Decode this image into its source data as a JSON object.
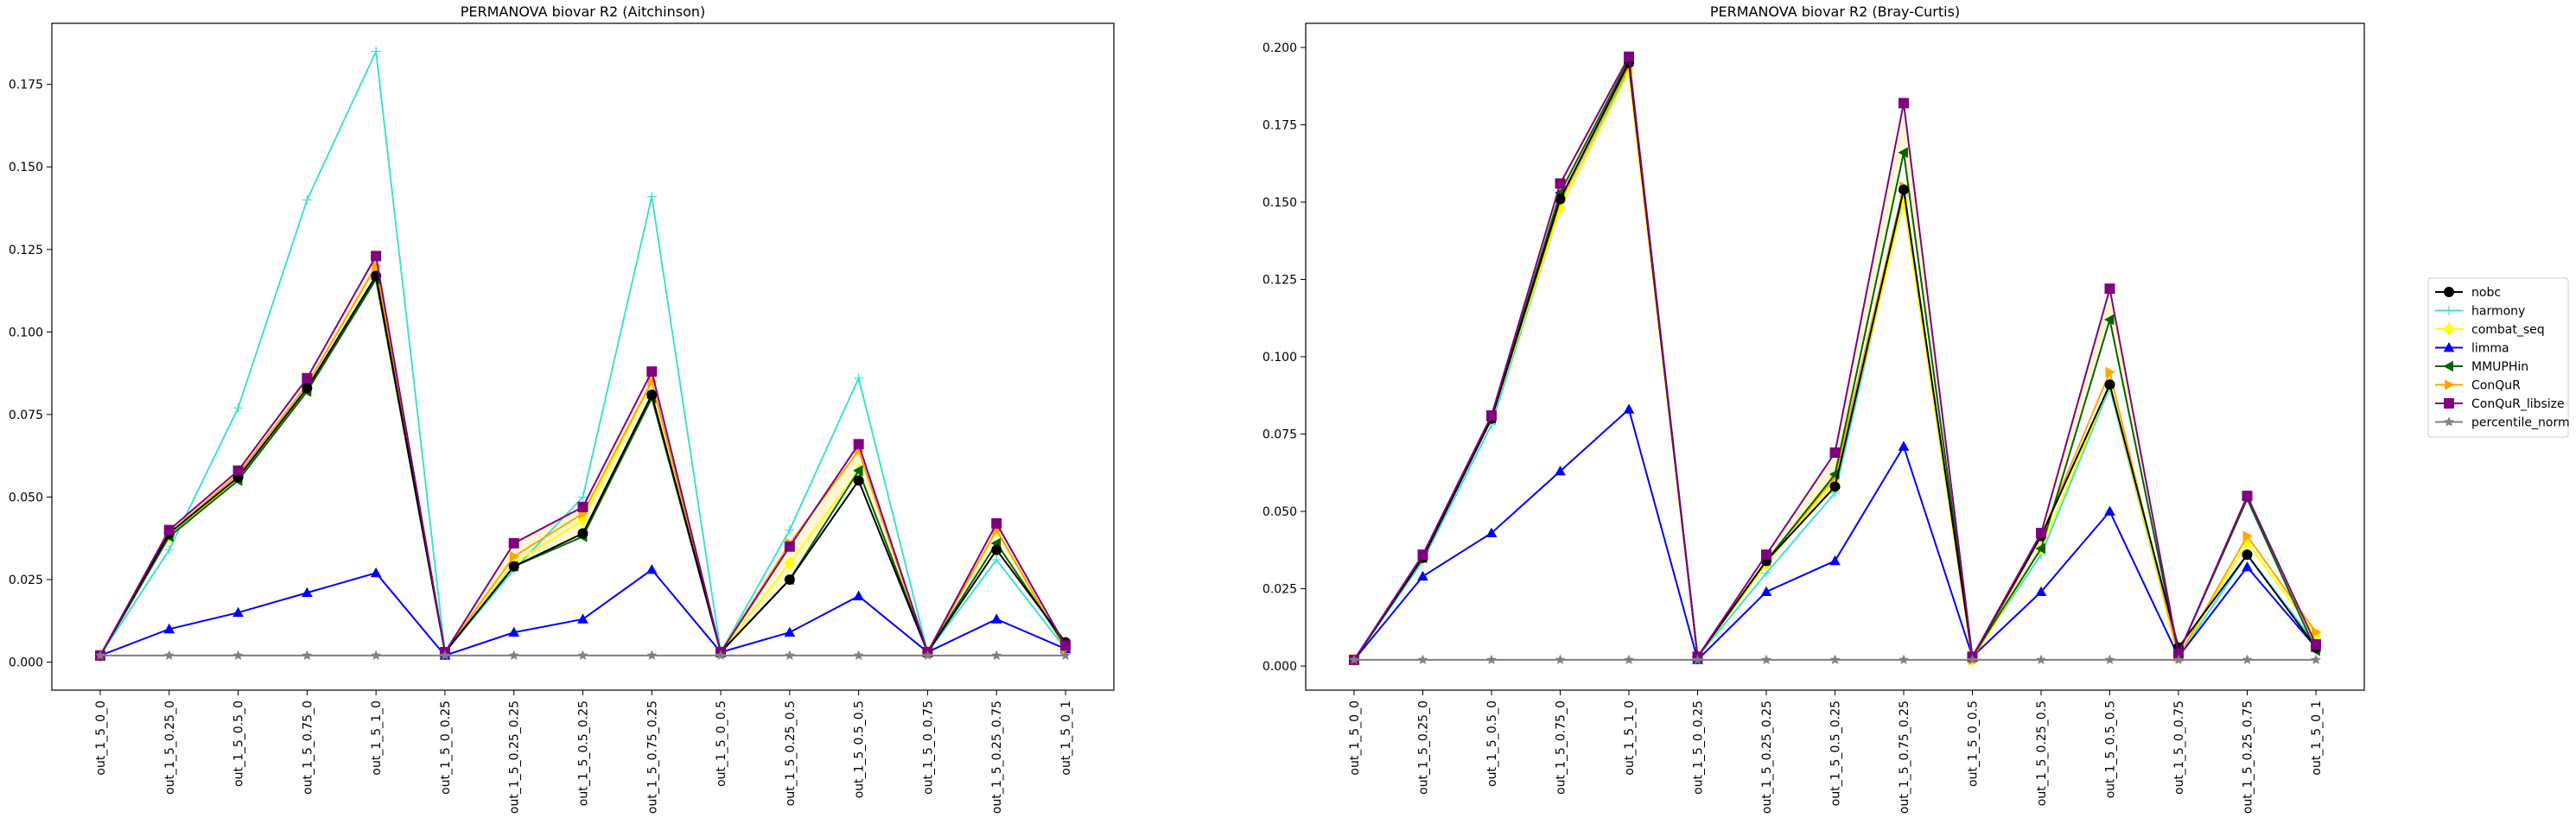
{
  "colors": {
    "nobc": "#000000",
    "harmony": "#40e0d0",
    "combat_seq": "#ffff00",
    "limma": "#0000ff",
    "MMUPHin": "#006400",
    "ConQuR": "#ffa500",
    "ConQuR_libsize": "#800080",
    "percentile_norm": "#808080",
    "fill_band": "#fff2b3"
  },
  "legend": {
    "placement": "right, outside",
    "entries": [
      {
        "key": "nobc",
        "label": "nobc",
        "marker": "circle"
      },
      {
        "key": "harmony",
        "label": "harmony",
        "marker": "thin-plus"
      },
      {
        "key": "combat_seq",
        "label": "combat_seq",
        "marker": "diamond"
      },
      {
        "key": "limma",
        "label": "limma",
        "marker": "triangle-up"
      },
      {
        "key": "MMUPHin",
        "label": "MMUPHin",
        "marker": "triangle-left"
      },
      {
        "key": "ConQuR",
        "label": "ConQuR",
        "marker": "triangle-right"
      },
      {
        "key": "ConQuR_libsize",
        "label": "ConQuR_libsize",
        "marker": "square"
      },
      {
        "key": "percentile_norm",
        "label": "percentile_norm",
        "marker": "star"
      }
    ]
  },
  "chart_data": [
    {
      "type": "line",
      "title": "PERMANOVA biovar R2 (Aitchinson)",
      "xlabel": "",
      "ylabel": "",
      "grid": false,
      "ylim": [
        -0.0085,
        0.1935
      ],
      "yticks": [
        0.0,
        0.025,
        0.05,
        0.075,
        0.1,
        0.125,
        0.15,
        0.175
      ],
      "ytick_labels": [
        "0.000",
        "0.025",
        "0.050",
        "0.075",
        "0.100",
        "0.125",
        "0.150",
        "0.175"
      ],
      "categories": [
        "out_1_5_0_0",
        "out_1_5_0.25_0",
        "out_1_5_0.5_0",
        "out_1_5_0.75_0",
        "out_1_5_1_0",
        "out_1_5_0_0.25",
        "out_1_5_0.25_0.25",
        "out_1_5_0.5_0.25",
        "out_1_5_0.75_0.25",
        "out_1_5_0_0.5",
        "out_1_5_0.25_0.5",
        "out_1_5_0.5_0.5",
        "out_1_5_0_0.75",
        "out_1_5_0.25_0.75",
        "out_1_5_0_1"
      ],
      "series": [
        {
          "name": "harmony",
          "values": [
            0.002,
            0.034,
            0.077,
            0.14,
            0.185,
            0.003,
            0.028,
            0.05,
            0.141,
            0.003,
            0.04,
            0.086,
            0.003,
            0.031,
            0.004
          ]
        },
        {
          "name": "combat_seq",
          "values": [
            0.002,
            0.038,
            0.056,
            0.083,
            0.117,
            0.003,
            0.03,
            0.043,
            0.085,
            0.003,
            0.03,
            0.058,
            0.003,
            0.04,
            0.004
          ]
        },
        {
          "name": "limma",
          "values": [
            0.002,
            0.01,
            0.015,
            0.021,
            0.027,
            0.002,
            0.009,
            0.013,
            0.028,
            0.003,
            0.009,
            0.02,
            0.003,
            0.013,
            0.004
          ]
        },
        {
          "name": "ConQuR",
          "values": [
            0.002,
            0.039,
            0.057,
            0.084,
            0.12,
            0.003,
            0.032,
            0.045,
            0.085,
            0.003,
            0.036,
            0.064,
            0.003,
            0.04,
            0.004
          ]
        },
        {
          "name": "MMUPHin",
          "values": [
            0.002,
            0.038,
            0.055,
            0.082,
            0.116,
            0.003,
            0.029,
            0.038,
            0.08,
            0.003,
            0.025,
            0.058,
            0.003,
            0.036,
            0.005
          ]
        },
        {
          "name": "nobc",
          "values": [
            0.002,
            0.039,
            0.056,
            0.083,
            0.117,
            0.003,
            0.029,
            0.039,
            0.081,
            0.003,
            0.025,
            0.055,
            0.003,
            0.034,
            0.006
          ]
        },
        {
          "name": "ConQuR_libsize",
          "values": [
            0.002,
            0.04,
            0.058,
            0.086,
            0.123,
            0.003,
            0.036,
            0.047,
            0.088,
            0.003,
            0.035,
            0.066,
            0.003,
            0.042,
            0.005
          ]
        },
        {
          "name": "percentile_norm",
          "values": [
            0.002,
            0.002,
            0.002,
            0.002,
            0.002,
            0.002,
            0.002,
            0.002,
            0.002,
            0.002,
            0.002,
            0.002,
            0.002,
            0.002,
            0.002
          ]
        }
      ]
    },
    {
      "type": "line",
      "title": "PERMANOVA biovar R2 (Bray-Curtis)",
      "xlabel": "",
      "ylabel": "",
      "grid": false,
      "ylim": [
        -0.0078,
        0.2078
      ],
      "yticks": [
        0.0,
        0.025,
        0.05,
        0.075,
        0.1,
        0.125,
        0.15,
        0.175,
        0.2
      ],
      "ytick_labels": [
        "0.000",
        "0.025",
        "0.050",
        "0.075",
        "0.100",
        "0.125",
        "0.150",
        "0.175",
        "0.200"
      ],
      "categories": [
        "out_1_5_0_0",
        "out_1_5_0.25_0",
        "out_1_5_0.5_0",
        "out_1_5_0.75_0",
        "out_1_5_1_0",
        "out_1_5_0_0.25",
        "out_1_5_0.25_0.25",
        "out_1_5_0.5_0.25",
        "out_1_5_0.75_0.25",
        "out_1_5_0_0.5",
        "out_1_5_0.25_0.5",
        "out_1_5_0.5_0.5",
        "out_1_5_0_0.75",
        "out_1_5_0.25_0.75",
        "out_1_5_0_1"
      ],
      "series": [
        {
          "name": "harmony",
          "values": [
            0.002,
            0.034,
            0.078,
            0.148,
            0.193,
            0.003,
            0.03,
            0.056,
            0.152,
            0.003,
            0.036,
            0.09,
            0.003,
            0.036,
            0.007
          ]
        },
        {
          "name": "combat_seq",
          "values": [
            0.002,
            0.035,
            0.08,
            0.148,
            0.192,
            0.003,
            0.033,
            0.06,
            0.15,
            0.002,
            0.038,
            0.091,
            0.003,
            0.04,
            0.01
          ]
        },
        {
          "name": "limma",
          "values": [
            0.002,
            0.029,
            0.043,
            0.063,
            0.083,
            0.002,
            0.024,
            0.034,
            0.071,
            0.003,
            0.024,
            0.05,
            0.003,
            0.032,
            0.006
          ]
        },
        {
          "name": "ConQuR",
          "values": [
            0.002,
            0.035,
            0.08,
            0.15,
            0.194,
            0.003,
            0.034,
            0.061,
            0.155,
            0.002,
            0.042,
            0.095,
            0.003,
            0.042,
            0.011
          ]
        },
        {
          "name": "MMUPHin",
          "values": [
            0.002,
            0.035,
            0.08,
            0.153,
            0.196,
            0.003,
            0.034,
            0.062,
            0.166,
            0.003,
            0.038,
            0.112,
            0.004,
            0.054,
            0.005
          ]
        },
        {
          "name": "nobc",
          "values": [
            0.002,
            0.035,
            0.08,
            0.151,
            0.195,
            0.003,
            0.034,
            0.058,
            0.154,
            0.003,
            0.042,
            0.091,
            0.006,
            0.036,
            0.006
          ]
        },
        {
          "name": "ConQuR_libsize",
          "values": [
            0.002,
            0.036,
            0.081,
            0.156,
            0.197,
            0.003,
            0.036,
            0.069,
            0.182,
            0.003,
            0.043,
            0.122,
            0.004,
            0.055,
            0.007
          ]
        },
        {
          "name": "percentile_norm",
          "values": [
            0.002,
            0.002,
            0.002,
            0.002,
            0.002,
            0.002,
            0.002,
            0.002,
            0.002,
            0.002,
            0.002,
            0.002,
            0.002,
            0.002,
            0.002
          ]
        }
      ]
    }
  ]
}
